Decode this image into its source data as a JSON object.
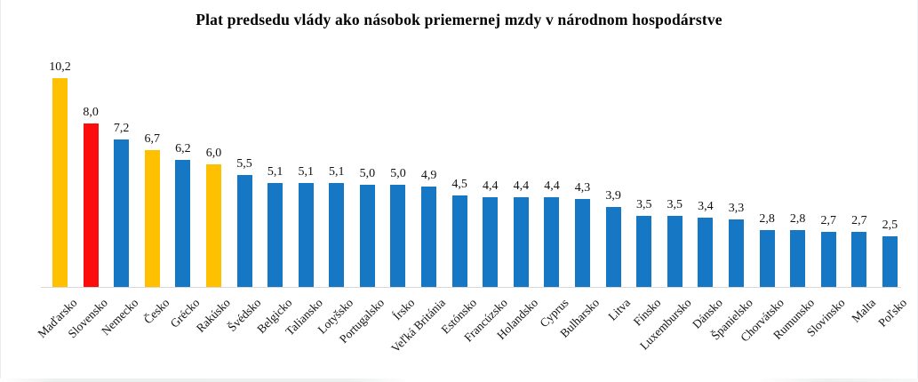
{
  "title": "Plat predsedu vlády ako násobok priemernej mzdy v národnom hospodárstve",
  "colors": {
    "background": "#ffffff",
    "bar_default": "#1678C4",
    "bar_highlight_gold": "#FFC000",
    "bar_highlight_red": "#FC0D0D",
    "axis_line": "#d9d9d9",
    "text": "#111111"
  },
  "chart_data": {
    "type": "bar",
    "title": "Plat predsedu vlády ako násobok priemernej mzdy v národnom hospodárstve",
    "xlabel": "",
    "ylabel": "",
    "ylim": [
      0,
      11
    ],
    "grid": false,
    "legend_position": "none",
    "value_label_decimal_separator": ",",
    "categories": [
      "Maďarsko",
      "Slovensko",
      "Nemecko",
      "Česko",
      "Grécko",
      "Rakúsko",
      "Švédsko",
      "Belgicko",
      "Taliansko",
      "Lotyšsko",
      "Portugalsko",
      "Írsko",
      "Veľká Británia",
      "Estónsko",
      "Francúzsko",
      "Holandsko",
      "Cyprus",
      "Bulharsko",
      "Litva",
      "Fínsko",
      "Luxembursko",
      "Dánsko",
      "Španielsko",
      "Chorvátsko",
      "Rumunsko",
      "Slovinsko",
      "Malta",
      "Poľsko"
    ],
    "values": [
      10.2,
      8.0,
      7.2,
      6.7,
      6.2,
      6.0,
      5.5,
      5.1,
      5.1,
      5.1,
      5.0,
      5.0,
      4.9,
      4.5,
      4.4,
      4.4,
      4.4,
      4.3,
      3.9,
      3.5,
      3.5,
      3.4,
      3.3,
      2.8,
      2.8,
      2.7,
      2.7,
      2.5
    ],
    "value_labels": [
      "10,2",
      "8,0",
      "7,2",
      "6,7",
      "6,2",
      "6,0",
      "5,5",
      "5,1",
      "5,1",
      "5,1",
      "5,0",
      "5,0",
      "4,9",
      "4,5",
      "4,4",
      "4,4",
      "4,4",
      "4,3",
      "3,9",
      "3,5",
      "3,5",
      "3,4",
      "3,3",
      "2,8",
      "2,8",
      "2,7",
      "2,7",
      "2,5"
    ],
    "bar_colors": [
      "#FFC000",
      "#FC0D0D",
      "#1678C4",
      "#FFC000",
      "#1678C4",
      "#FFC000",
      "#1678C4",
      "#1678C4",
      "#1678C4",
      "#1678C4",
      "#1678C4",
      "#1678C4",
      "#1678C4",
      "#1678C4",
      "#1678C4",
      "#1678C4",
      "#1678C4",
      "#1678C4",
      "#1678C4",
      "#1678C4",
      "#1678C4",
      "#1678C4",
      "#1678C4",
      "#1678C4",
      "#1678C4",
      "#1678C4",
      "#1678C4",
      "#1678C4"
    ]
  }
}
